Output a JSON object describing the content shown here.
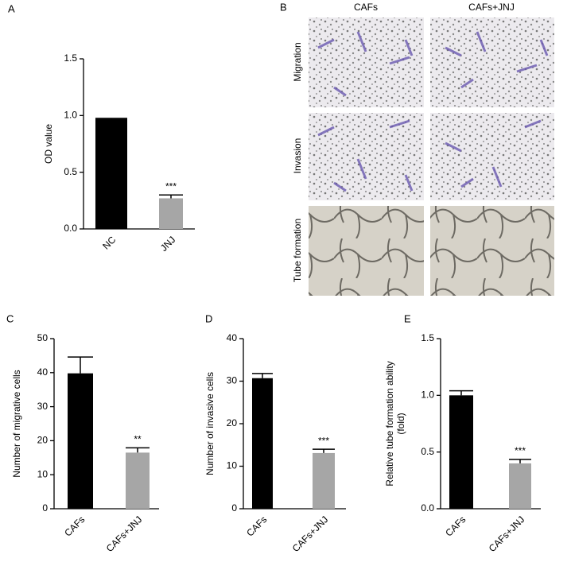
{
  "chart_data": [
    {
      "type": "bar",
      "panel": "A",
      "ylabel": [
        "OD value"
      ],
      "categories": [
        "NC",
        "JNJ"
      ],
      "values": [
        0.97,
        0.27
      ],
      "errors": [
        0.005,
        0.03
      ],
      "annotations": [
        null,
        "***"
      ],
      "colors": [
        "#000000",
        "#a6a6a6"
      ],
      "ylim": [
        0,
        1.5
      ],
      "yticks": [
        {
          "value": 0,
          "label": "0.0"
        },
        {
          "value": 0.5,
          "label": "0.5"
        },
        {
          "value": 1,
          "label": "1.0"
        },
        {
          "value": 1.5,
          "label": "1.5"
        }
      ]
    },
    {
      "type": "bar",
      "panel": "C",
      "ylabel": [
        "Number of migrative  cells"
      ],
      "categories": [
        "CAFs",
        "CAFs+JNJ"
      ],
      "values": [
        39.8,
        16.5
      ],
      "errors": [
        4.8,
        1.4
      ],
      "annotations": [
        null,
        "**"
      ],
      "colors": [
        "#000000",
        "#a6a6a6"
      ],
      "ylim": [
        0,
        50
      ],
      "yticks": [
        0,
        10,
        20,
        30,
        40,
        50
      ]
    },
    {
      "type": "bar",
      "panel": "D",
      "ylabel": [
        "Number of invasive  cells"
      ],
      "categories": [
        "CAFs",
        "CAFs+JNJ"
      ],
      "values": [
        30.7,
        13.1
      ],
      "errors": [
        1.1,
        0.9
      ],
      "annotations": [
        null,
        "***"
      ],
      "colors": [
        "#000000",
        "#a6a6a6"
      ],
      "ylim": [
        0,
        40
      ],
      "yticks": [
        0,
        10,
        20,
        30,
        40
      ]
    },
    {
      "type": "bar",
      "panel": "E",
      "ylabel": [
        "Relative tube formation ability",
        "(fold)"
      ],
      "categories": [
        "CAFs",
        "CAFs+JNJ"
      ],
      "values": [
        1.0,
        0.4
      ],
      "errors": [
        0.04,
        0.035
      ],
      "annotations": [
        null,
        "***"
      ],
      "colors": [
        "#000000",
        "#a6a6a6"
      ],
      "ylim": [
        0,
        1.5
      ],
      "yticks": [
        {
          "value": 0,
          "label": "0.0"
        },
        {
          "value": 0.5,
          "label": "0.5"
        },
        {
          "value": 1,
          "label": "1.0"
        },
        {
          "value": 1.5,
          "label": "1.5"
        }
      ]
    }
  ],
  "panel_b": {
    "panel": "B",
    "columns": [
      "CAFs",
      "CAFs+JNJ"
    ],
    "rows": [
      "Migration",
      "Invasion",
      "Tube formation"
    ]
  }
}
